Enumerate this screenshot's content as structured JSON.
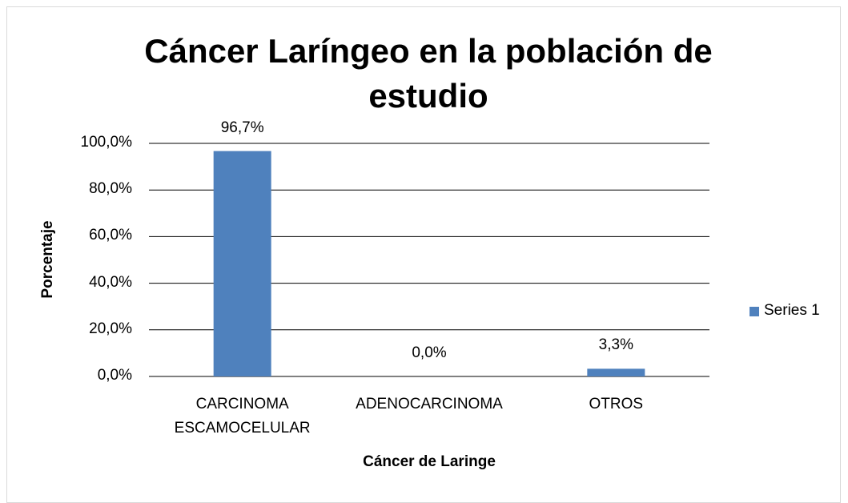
{
  "chart_data": {
    "type": "bar",
    "title": "Cáncer Laríngeo en la población de estudio",
    "categories": [
      "CARCINOMA ESCAMOCELULAR",
      "ADENOCARCINOMA",
      "OTROS"
    ],
    "series": [
      {
        "name": "Series 1",
        "color": "#4f81bd",
        "values": [
          96.7,
          0,
          3.3
        ],
        "value_labels": [
          "96,7%",
          "0,0%",
          "3,3%"
        ]
      }
    ],
    "x_label": "Cáncer de Laringe",
    "y_label": "Porcentaje",
    "ylim": [
      0,
      100
    ],
    "yticks": [
      {
        "value": 0,
        "label": "0,0%"
      },
      {
        "value": 20,
        "label": "20,0%"
      },
      {
        "value": 40,
        "label": "40,0%"
      },
      {
        "value": 60,
        "label": "60,0%"
      },
      {
        "value": 80,
        "label": "80,0%"
      },
      {
        "value": 100,
        "label": "100,0%"
      }
    ],
    "grid": true,
    "legend": "right"
  }
}
